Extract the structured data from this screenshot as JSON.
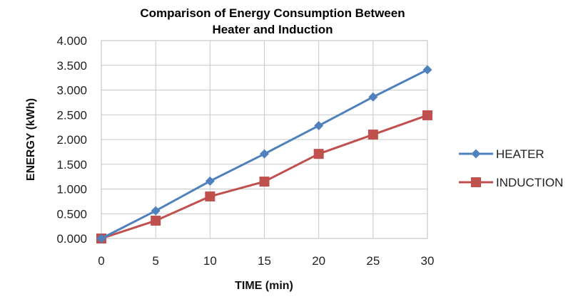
{
  "chart_data": {
    "type": "line",
    "title_lines": [
      "Comparison of Energy Consumption Between",
      "Heater and Induction"
    ],
    "xlabel": "TIME (min)",
    "ylabel": "ENERGY (kWh)",
    "x": [
      0,
      5,
      10,
      15,
      20,
      25,
      30
    ],
    "xlim": [
      0,
      30
    ],
    "ylim": [
      0,
      4
    ],
    "yticks": [
      0,
      0.5,
      1,
      1.5,
      2,
      2.5,
      3,
      3.5,
      4
    ],
    "ytick_labels": [
      "0.000",
      "0.500",
      "1.000",
      "1.500",
      "2.000",
      "2.500",
      "3.000",
      "3.500",
      "4.000"
    ],
    "xtick_labels": [
      "0",
      "5",
      "10",
      "15",
      "20",
      "25",
      "30"
    ],
    "grid": true,
    "legend_position": "right",
    "series": [
      {
        "name": "HEATER",
        "values": [
          0.0,
          0.56,
          1.16,
          1.71,
          2.28,
          2.86,
          3.41
        ],
        "color": "#4F81BD",
        "marker": "diamond"
      },
      {
        "name": "INDUCTION",
        "values": [
          0.0,
          0.36,
          0.85,
          1.15,
          1.71,
          2.1,
          2.49
        ],
        "color": "#C0504D",
        "marker": "square"
      }
    ]
  }
}
